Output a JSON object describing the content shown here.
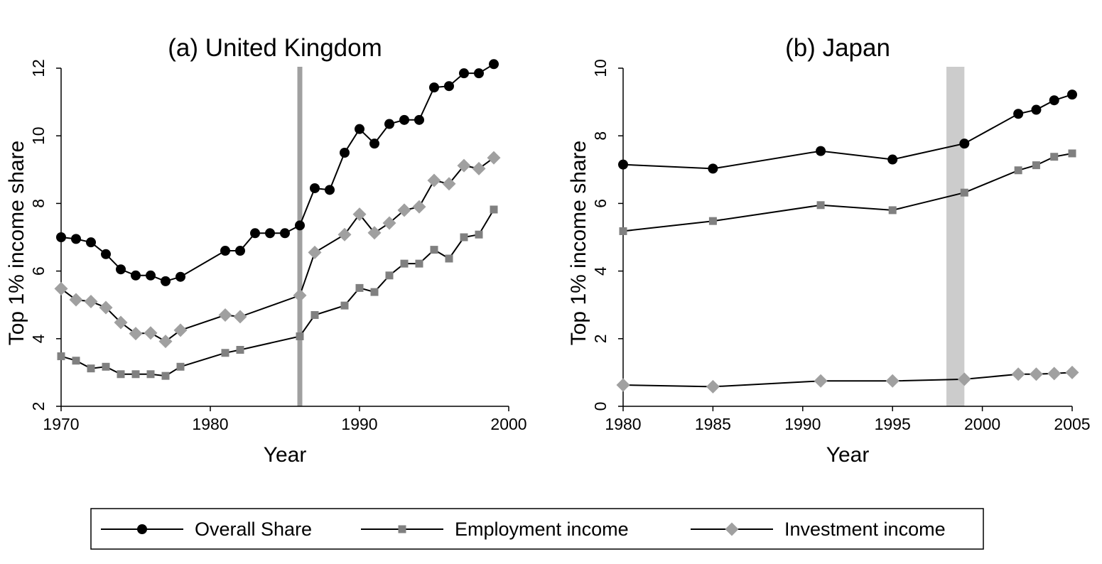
{
  "legend": {
    "placement": "bottom",
    "items": [
      {
        "label": "Overall Share",
        "marker": "circle",
        "color": "#000000"
      },
      {
        "label": "Employment income",
        "marker": "square",
        "color": "#808080"
      },
      {
        "label": "Investment income",
        "marker": "diamond",
        "color": "#a0a0a0"
      }
    ]
  },
  "chart_data": [
    {
      "type": "line",
      "title": "(a) United Kingdom",
      "xlabel": "Year",
      "ylabel": "Top 1% income share",
      "xlim": [
        1970,
        2000
      ],
      "ylim": [
        2,
        12
      ],
      "xticks": [
        1970,
        1980,
        1990,
        2000
      ],
      "yticks": [
        2,
        4,
        6,
        8,
        10,
        12
      ],
      "grid": false,
      "vertical_band": {
        "from": 1986,
        "to": 1986,
        "color": "#a0a0a0"
      },
      "series": [
        {
          "name": "Overall Share",
          "marker": "circle",
          "color": "#000000",
          "markerColor": "#000000",
          "x": [
            1970,
            1971,
            1972,
            1973,
            1974,
            1975,
            1976,
            1977,
            1978,
            1981,
            1982,
            1983,
            1984,
            1985,
            1986,
            1987,
            1988,
            1989,
            1990,
            1991,
            1992,
            1993,
            1994,
            1995,
            1996,
            1997,
            1998,
            1999
          ],
          "y": [
            7.0,
            6.95,
            6.85,
            6.5,
            6.05,
            5.87,
            5.87,
            5.7,
            5.83,
            6.6,
            6.6,
            7.12,
            7.12,
            7.12,
            7.35,
            8.45,
            8.4,
            9.5,
            10.2,
            9.77,
            10.35,
            10.47,
            10.47,
            11.43,
            11.47,
            11.85,
            11.85,
            12.12
          ]
        },
        {
          "name": "Employment income",
          "marker": "square",
          "color": "#000000",
          "markerColor": "#808080",
          "x": [
            1970,
            1971,
            1972,
            1973,
            1974,
            1975,
            1976,
            1977,
            1978,
            1981,
            1982,
            1986,
            1987,
            1989,
            1990,
            1991,
            1992,
            1993,
            1994,
            1995,
            1996,
            1997,
            1998,
            1999
          ],
          "y": [
            3.48,
            3.35,
            3.12,
            3.17,
            2.95,
            2.95,
            2.95,
            2.9,
            3.17,
            3.58,
            3.67,
            4.07,
            4.7,
            4.98,
            5.5,
            5.38,
            5.87,
            6.22,
            6.22,
            6.63,
            6.37,
            7.0,
            7.08,
            7.82
          ]
        },
        {
          "name": "Investment income",
          "marker": "diamond",
          "color": "#000000",
          "markerColor": "#a0a0a0",
          "x": [
            1970,
            1971,
            1972,
            1973,
            1974,
            1975,
            1976,
            1977,
            1978,
            1981,
            1982,
            1986,
            1987,
            1989,
            1990,
            1991,
            1992,
            1993,
            1994,
            1995,
            1996,
            1997,
            1998,
            1999
          ],
          "y": [
            5.48,
            5.15,
            5.1,
            4.92,
            4.48,
            4.15,
            4.17,
            3.92,
            4.25,
            4.7,
            4.65,
            5.28,
            6.55,
            7.08,
            7.68,
            7.13,
            7.42,
            7.8,
            7.9,
            8.68,
            8.58,
            9.12,
            9.03,
            9.35
          ]
        }
      ]
    },
    {
      "type": "line",
      "title": "(b) Japan",
      "xlabel": "Year",
      "ylabel": "Top 1% income share",
      "xlim": [
        1980,
        2005
      ],
      "ylim": [
        0,
        10
      ],
      "xticks": [
        1980,
        1985,
        1990,
        1995,
        2000,
        2005
      ],
      "yticks": [
        0,
        2,
        4,
        6,
        8,
        10
      ],
      "grid": false,
      "vertical_band": {
        "from": 1998,
        "to": 1999,
        "color": "#cccccc"
      },
      "series": [
        {
          "name": "Overall Share",
          "marker": "circle",
          "color": "#000000",
          "markerColor": "#000000",
          "x": [
            1980,
            1985,
            1991,
            1995,
            1999,
            2002,
            2003,
            2004,
            2005
          ],
          "y": [
            7.15,
            7.03,
            7.55,
            7.3,
            7.77,
            8.65,
            8.77,
            9.05,
            9.22
          ]
        },
        {
          "name": "Employment income",
          "marker": "square",
          "color": "#000000",
          "markerColor": "#808080",
          "x": [
            1980,
            1985,
            1991,
            1995,
            1999,
            2002,
            2003,
            2004,
            2005
          ],
          "y": [
            5.18,
            5.48,
            5.95,
            5.8,
            6.32,
            6.98,
            7.13,
            7.38,
            7.48
          ]
        },
        {
          "name": "Investment income",
          "marker": "diamond",
          "color": "#000000",
          "markerColor": "#a0a0a0",
          "x": [
            1980,
            1985,
            1991,
            1995,
            1999,
            2002,
            2003,
            2004,
            2005
          ],
          "y": [
            0.63,
            0.58,
            0.75,
            0.75,
            0.8,
            0.95,
            0.95,
            0.97,
            1.0
          ]
        }
      ]
    }
  ]
}
